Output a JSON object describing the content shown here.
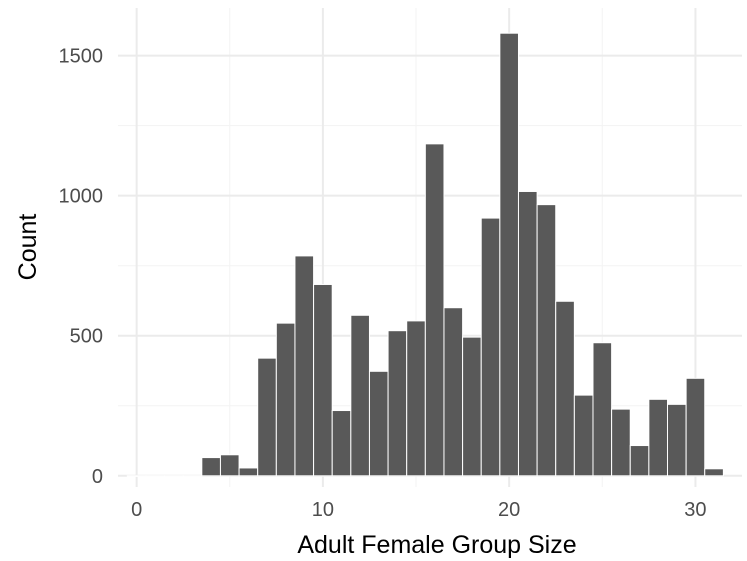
{
  "chart_data": {
    "type": "bar",
    "title": "",
    "xlabel": "Adult Female Group Size",
    "ylabel": "Count",
    "xlim": [
      -1.0,
      32.5
    ],
    "ylim": [
      -40,
      1670
    ],
    "grid": true,
    "legend": "none",
    "bin_width": 1,
    "x_ticks": [
      0,
      10,
      20,
      30
    ],
    "y_ticks": [
      0,
      500,
      1000,
      1500
    ],
    "bins": [
      {
        "x": 0,
        "count": 0
      },
      {
        "x": 1,
        "count": 0
      },
      {
        "x": 2,
        "count": 0
      },
      {
        "x": 3,
        "count": 0
      },
      {
        "x": 4,
        "count": 65
      },
      {
        "x": 5,
        "count": 75
      },
      {
        "x": 6,
        "count": 28
      },
      {
        "x": 7,
        "count": 420
      },
      {
        "x": 8,
        "count": 545
      },
      {
        "x": 9,
        "count": 785
      },
      {
        "x": 10,
        "count": 683
      },
      {
        "x": 11,
        "count": 233
      },
      {
        "x": 12,
        "count": 573
      },
      {
        "x": 13,
        "count": 373
      },
      {
        "x": 14,
        "count": 518
      },
      {
        "x": 15,
        "count": 553
      },
      {
        "x": 16,
        "count": 1185
      },
      {
        "x": 17,
        "count": 600
      },
      {
        "x": 18,
        "count": 495
      },
      {
        "x": 19,
        "count": 920
      },
      {
        "x": 20,
        "count": 1580
      },
      {
        "x": 21,
        "count": 1015
      },
      {
        "x": 22,
        "count": 968
      },
      {
        "x": 23,
        "count": 623
      },
      {
        "x": 24,
        "count": 288
      },
      {
        "x": 25,
        "count": 475
      },
      {
        "x": 26,
        "count": 238
      },
      {
        "x": 27,
        "count": 108
      },
      {
        "x": 28,
        "count": 273
      },
      {
        "x": 29,
        "count": 255
      },
      {
        "x": 30,
        "count": 348
      },
      {
        "x": 31,
        "count": 25
      }
    ],
    "colors": {
      "bar_fill": "#595959",
      "bar_stroke": "#ffffff",
      "grid_major": "#ebebeb",
      "grid_minor": "#f3f3f3",
      "tick_text": "#4d4d4d",
      "axis_title": "#000000",
      "background": "#ffffff"
    }
  }
}
